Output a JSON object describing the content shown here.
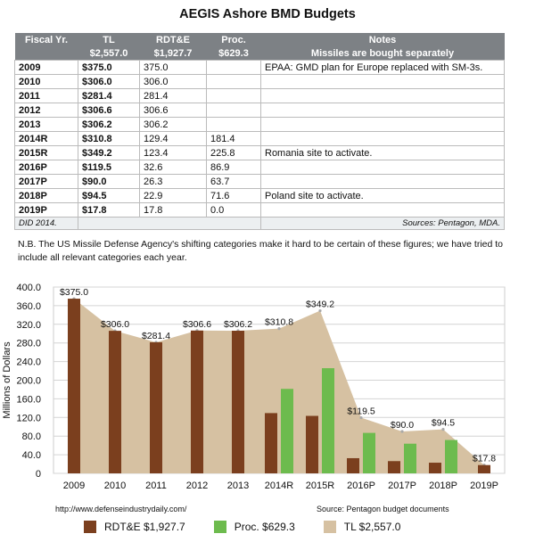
{
  "title": "AEGIS Ashore BMD Budgets",
  "colors": {
    "rdte": "#7b3f1e",
    "proc": "#6dbb4e",
    "tl": "#d6c1a2",
    "header": "#7d8185"
  },
  "table": {
    "headers": [
      "Fiscal Yr.",
      "TL",
      "RDT&E",
      "Proc.",
      "Notes"
    ],
    "totals": [
      "",
      "$2,557.0",
      "$1,927.7",
      "$629.3",
      "Missiles are bought separately"
    ],
    "rows": [
      {
        "fy": "2009",
        "tl": "$375.0",
        "rdte": "375.0",
        "proc": "",
        "note": "EPAA: GMD plan for Europe replaced with SM-3s."
      },
      {
        "fy": "2010",
        "tl": "$306.0",
        "rdte": "306.0",
        "proc": "",
        "note": ""
      },
      {
        "fy": "2011",
        "tl": "$281.4",
        "rdte": "281.4",
        "proc": "",
        "note": ""
      },
      {
        "fy": "2012",
        "tl": "$306.6",
        "rdte": "306.6",
        "proc": "",
        "note": ""
      },
      {
        "fy": "2013",
        "tl": "$306.2",
        "rdte": "306.2",
        "proc": "",
        "note": ""
      },
      {
        "fy": "2014R",
        "tl": "$310.8",
        "rdte": "129.4",
        "proc": "181.4",
        "note": ""
      },
      {
        "fy": "2015R",
        "tl": "$349.2",
        "rdte": "123.4",
        "proc": "225.8",
        "note": "Romania site to activate."
      },
      {
        "fy": "2016P",
        "tl": "$119.5",
        "rdte": "32.6",
        "proc": "86.9",
        "note": ""
      },
      {
        "fy": "2017P",
        "tl": "$90.0",
        "rdte": "26.3",
        "proc": "63.7",
        "note": ""
      },
      {
        "fy": "2018P",
        "tl": "$94.5",
        "rdte": "22.9",
        "proc": "71.6",
        "note": "Poland site to activate."
      },
      {
        "fy": "2019P",
        "tl": "$17.8",
        "rdte": "17.8",
        "proc": "0.0",
        "note": ""
      }
    ],
    "footer_left": "DID 2014.",
    "footer_right": "Sources: Pentagon, MDA."
  },
  "note": "N.B. The US Missile Defense Agency's shifting categories make it hard to be certain of these figures; we have tried to include all relevant categories each year.",
  "chart_data": {
    "type": "bar",
    "categories": [
      "2009",
      "2010",
      "2011",
      "2012",
      "2013",
      "2014R",
      "2015R",
      "2016P",
      "2017P",
      "2018P",
      "2019P"
    ],
    "series": [
      {
        "name": "RDT&E $1,927.7",
        "type": "bar",
        "values": [
          375.0,
          306.0,
          281.4,
          306.6,
          306.2,
          129.4,
          123.4,
          32.6,
          26.3,
          22.9,
          17.8
        ]
      },
      {
        "name": "Proc. $629.3",
        "type": "bar",
        "values": [
          null,
          null,
          null,
          null,
          null,
          181.4,
          225.8,
          86.9,
          63.7,
          71.6,
          0.0
        ]
      },
      {
        "name": "TL $2,557.0",
        "type": "area",
        "values": [
          375.0,
          306.0,
          281.4,
          306.6,
          306.2,
          310.8,
          349.2,
          119.5,
          90.0,
          94.5,
          17.8
        ]
      }
    ],
    "tl_labels": [
      "$375.0",
      "$306.0",
      "$281.4",
      "$306.6",
      "$306.2",
      "$310.8",
      "$349.2",
      "$119.5",
      "$90.0",
      "$94.5",
      "$17.8"
    ],
    "ylabel": "Millions of Dollars",
    "ylim": [
      0,
      400
    ],
    "yticks": [
      "0",
      "40.0",
      "80.0",
      "120.0",
      "160.0",
      "200.0",
      "240.0",
      "280.0",
      "320.0",
      "360.0",
      "400.0"
    ],
    "grid": true,
    "source_left": "http://www.defenseindustrydaily.com/",
    "source_right": "Source: Pentagon budget documents",
    "legend_position": "bottom"
  }
}
